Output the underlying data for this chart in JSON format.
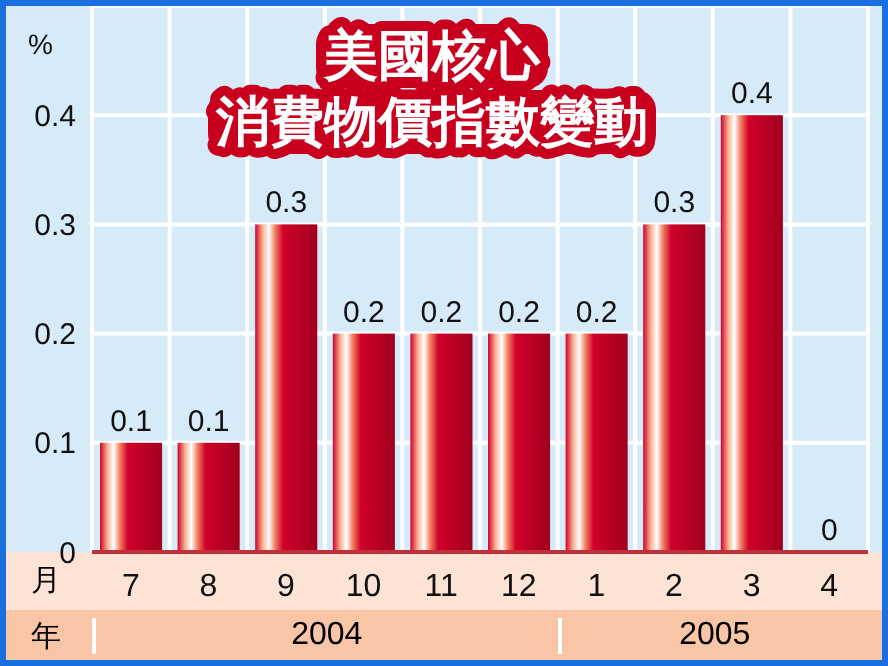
{
  "chart_data": {
    "type": "bar",
    "title": "美國核心",
    "subtitle": "消費物價指數變動",
    "ylabel": "%",
    "xlabel": "月",
    "categories": [
      "7",
      "8",
      "9",
      "10",
      "11",
      "12",
      "1",
      "2",
      "3",
      "4"
    ],
    "values": [
      0.1,
      0.1,
      0.3,
      0.2,
      0.2,
      0.2,
      0.2,
      0.3,
      0.4,
      0
    ],
    "color": "#d0002a",
    "ylim": [
      0,
      0.5
    ],
    "yticks": [
      0,
      0.1,
      0.2,
      0.3,
      0.4,
      {
        "value": 0.5,
        "label": null
      }
    ],
    "grid": true,
    "data_labels": true,
    "annotations": [
      "年",
      "2004",
      "2005"
    ]
  }
}
